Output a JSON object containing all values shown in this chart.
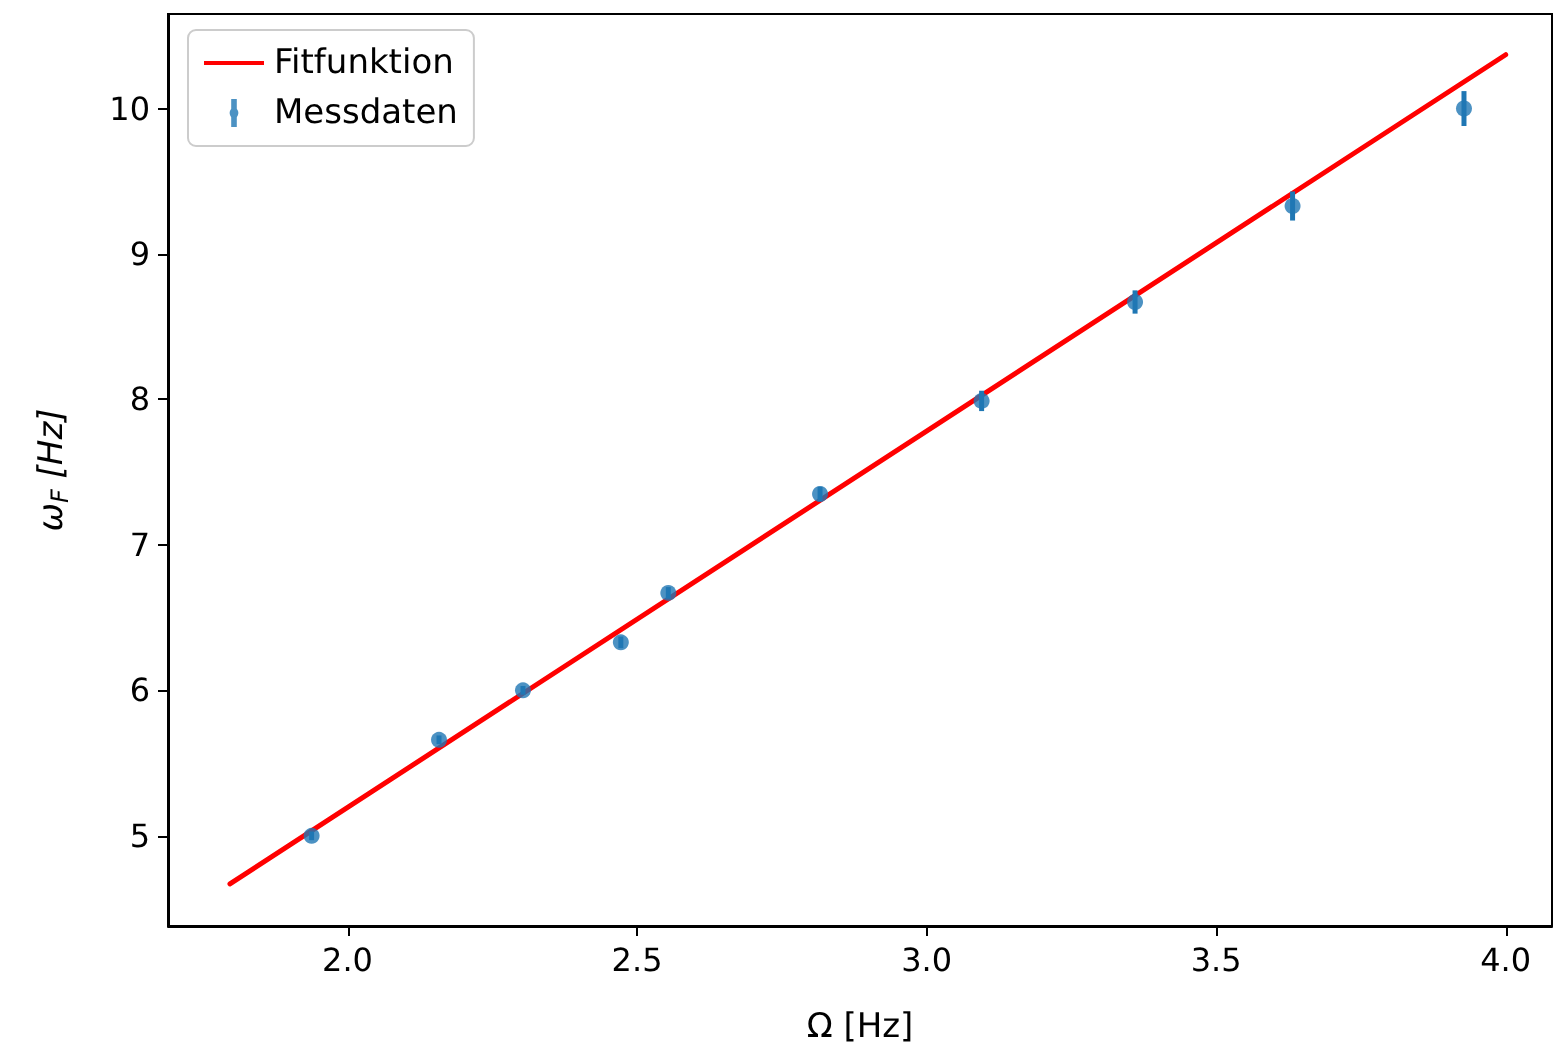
{
  "chart_data": {
    "type": "scatter",
    "xlabel": "Ω [Hz]",
    "ylabel": "ω$_{F}$ [Hz]",
    "xlim": [
      1.69,
      4.08
    ],
    "xticks": [
      {
        "value": 2,
        "label": "2.0"
      },
      2.5,
      {
        "value": 3,
        "label": "3.0"
      },
      3.5,
      {
        "value": 4,
        "label": "4.0"
      }
    ],
    "ylim": [
      4.38,
      10.65
    ],
    "yticks": [
      5,
      6,
      7,
      8,
      9,
      10
    ],
    "legend": "top left",
    "grid": false,
    "series": [
      {
        "type": "line",
        "name": "Fitfunktion",
        "color": "#ff0000",
        "marker": "none",
        "line_style": "solid",
        "x": [
          1.797,
          4.0
        ],
        "values": [
          4.67,
          10.37
        ]
      },
      {
        "name": "Messdaten",
        "color": "#1f77b4",
        "marker": "circle",
        "x": [
          1.938,
          2.158,
          2.303,
          2.472,
          2.554,
          2.816,
          3.095,
          3.36,
          3.632,
          3.928
        ],
        "values": [
          5.0,
          5.66,
          6.0,
          6.33,
          6.67,
          7.35,
          7.99,
          8.67,
          9.33,
          10.0
        ],
        "errors": [
          0.03,
          0.03,
          0.03,
          0.04,
          0.04,
          0.05,
          0.07,
          0.08,
          0.1,
          0.12
        ]
      }
    ]
  }
}
